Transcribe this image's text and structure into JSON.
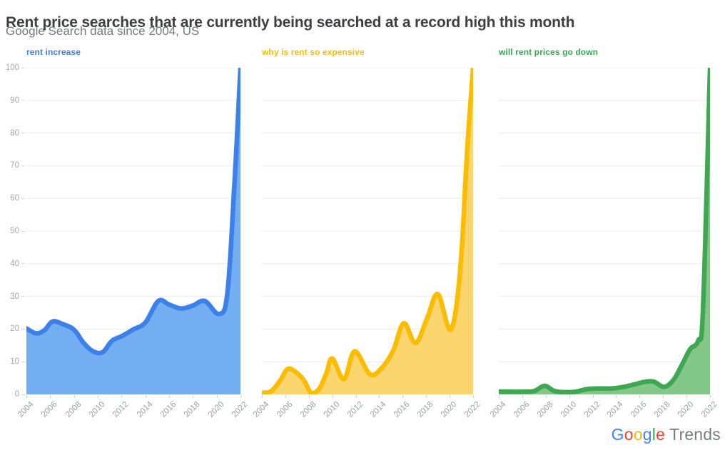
{
  "header": {
    "title": "Rent price searches that are currently being searched at a record high this month",
    "subtitle": "Google Search data since 2004, US"
  },
  "y_axis": {
    "ticks": [
      100,
      90,
      80,
      70,
      60,
      50,
      40,
      30,
      20,
      10,
      0
    ]
  },
  "x_axis": {
    "ticks": [
      2004,
      2006,
      2008,
      2010,
      2012,
      2014,
      2016,
      2018,
      2020,
      2022
    ]
  },
  "chart_data": [
    {
      "type": "area",
      "title": "rent increase",
      "xlabel": "",
      "ylabel": "",
      "xlim": [
        2004,
        2022
      ],
      "ylim": [
        0,
        100
      ],
      "grid": true,
      "colors": {
        "label": "#3B7DE8",
        "line": "#3D81E8",
        "fill": "#74AEF2"
      },
      "points": [
        [
          2004,
          20.2
        ],
        [
          2004.8,
          18.7
        ],
        [
          2005.5,
          19.6
        ],
        [
          2006.2,
          22.3
        ],
        [
          2007,
          21.6
        ],
        [
          2008,
          19.8
        ],
        [
          2008.8,
          15.8
        ],
        [
          2009.6,
          13.2
        ],
        [
          2010.4,
          12.9
        ],
        [
          2011.2,
          16.4
        ],
        [
          2012,
          17.8
        ],
        [
          2013,
          19.9
        ],
        [
          2014,
          22
        ],
        [
          2015.1,
          28.6
        ],
        [
          2016,
          27.5
        ],
        [
          2017,
          26.3
        ],
        [
          2018,
          27.2
        ],
        [
          2019,
          28.6
        ],
        [
          2020.2,
          24.6
        ],
        [
          2020.9,
          31
        ],
        [
          2021.5,
          65
        ],
        [
          2022,
          100
        ]
      ]
    },
    {
      "type": "area",
      "title": "why is rent so expensive",
      "xlabel": "",
      "ylabel": "",
      "xlim": [
        2004,
        2022
      ],
      "ylim": [
        0,
        100
      ],
      "grid": true,
      "colors": {
        "label": "#FBBC04",
        "line": "#FBBC04",
        "fill": "#FBD56E"
      },
      "points": [
        [
          2004,
          0.5
        ],
        [
          2004.8,
          1
        ],
        [
          2005.6,
          4.5
        ],
        [
          2006.2,
          7.8
        ],
        [
          2006.9,
          6.8
        ],
        [
          2007.6,
          4.2
        ],
        [
          2008.2,
          0.5
        ],
        [
          2008.9,
          1.8
        ],
        [
          2009.5,
          6.5
        ],
        [
          2010,
          11
        ],
        [
          2011,
          4.6
        ],
        [
          2011.9,
          13.2
        ],
        [
          2013.2,
          6.2
        ],
        [
          2014.2,
          8
        ],
        [
          2015.2,
          13.5
        ],
        [
          2016.1,
          21.8
        ],
        [
          2017.1,
          15.7
        ],
        [
          2018.1,
          23.5
        ],
        [
          2019,
          30.7
        ],
        [
          2020.1,
          19.8
        ],
        [
          2020.9,
          38
        ],
        [
          2021.5,
          75
        ],
        [
          2022,
          100
        ]
      ]
    },
    {
      "type": "area",
      "title": "will rent prices go down",
      "xlabel": "",
      "ylabel": "",
      "xlim": [
        2004,
        2022
      ],
      "ylim": [
        0,
        100
      ],
      "grid": true,
      "colors": {
        "label": "#34A853",
        "line": "#3FA751",
        "fill": "#84C78A"
      },
      "points": [
        [
          2004,
          0.8
        ],
        [
          2005,
          0.8
        ],
        [
          2006,
          0.8
        ],
        [
          2007,
          1
        ],
        [
          2007.9,
          2.6
        ],
        [
          2008.7,
          1.1
        ],
        [
          2009.5,
          0.7
        ],
        [
          2010.5,
          0.8
        ],
        [
          2011.5,
          1.6
        ],
        [
          2012.5,
          1.8
        ],
        [
          2013.5,
          1.8
        ],
        [
          2014.5,
          2.2
        ],
        [
          2015.5,
          3
        ],
        [
          2016.4,
          3.8
        ],
        [
          2017.2,
          3.9
        ],
        [
          2018.1,
          2.3
        ],
        [
          2018.9,
          4.5
        ],
        [
          2019.6,
          9
        ],
        [
          2020.3,
          13.8
        ],
        [
          2021,
          16.5
        ],
        [
          2021.4,
          26
        ],
        [
          2022,
          100
        ]
      ]
    }
  ],
  "style": {
    "gridline_color": "#ececec",
    "axis_text_color": "#9aa0a6",
    "line_width": 6.5
  },
  "footer": {
    "brand_letters": [
      {
        "ch": "G",
        "color": "#4285F4"
      },
      {
        "ch": "o",
        "color": "#EA4335"
      },
      {
        "ch": "o",
        "color": "#FBBC05"
      },
      {
        "ch": "g",
        "color": "#4285F4"
      },
      {
        "ch": "l",
        "color": "#34A853"
      },
      {
        "ch": "e",
        "color": "#EA4335"
      }
    ],
    "brand_suffix": "Trends"
  }
}
